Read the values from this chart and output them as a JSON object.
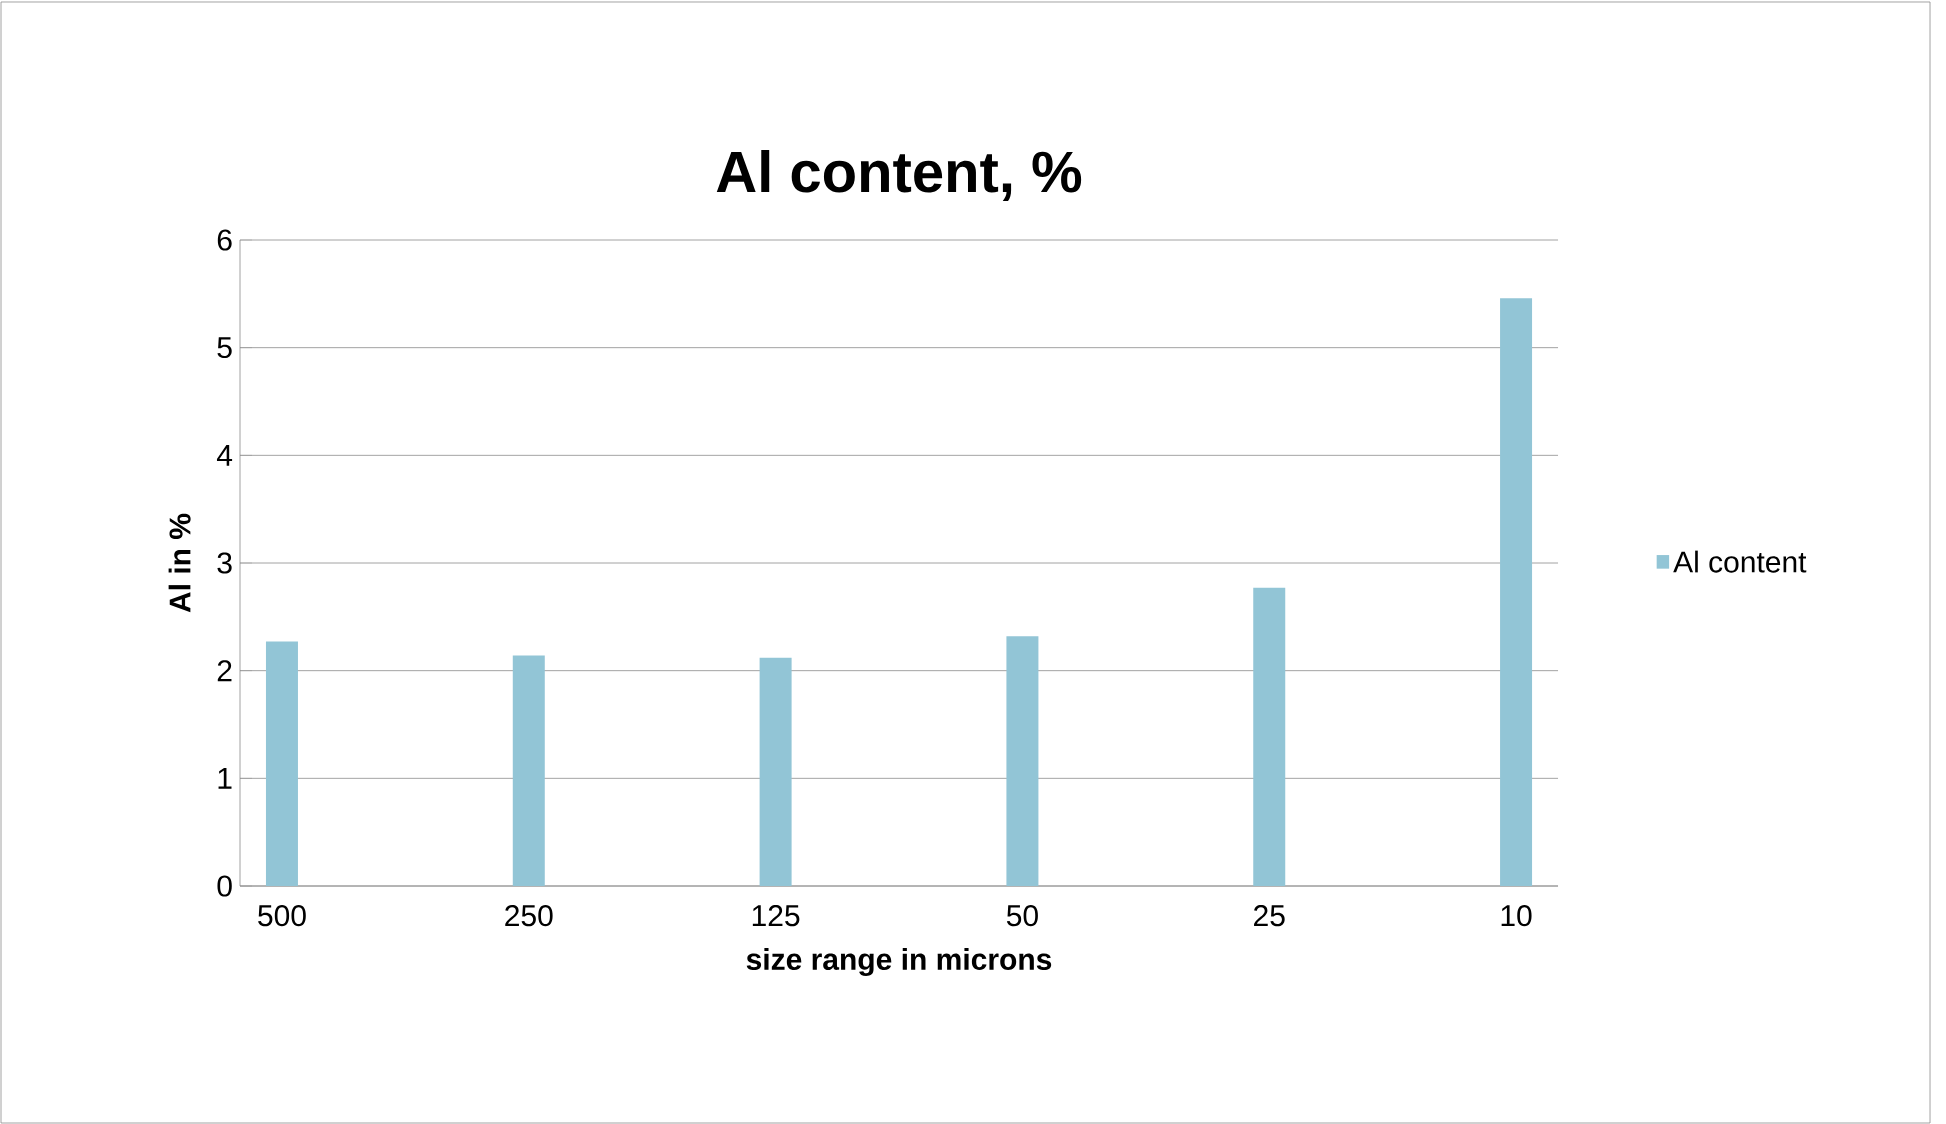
{
  "chart_data": {
    "type": "bar",
    "title": "Al content, %",
    "xlabel": "size range in microns",
    "ylabel": "Al in %",
    "categories": [
      "500",
      "250",
      "125",
      "50",
      "25",
      "10"
    ],
    "series": [
      {
        "name": "Al content",
        "color": "#92c5d6",
        "values": [
          2.27,
          2.14,
          2.12,
          2.32,
          2.77,
          5.46
        ]
      }
    ],
    "ylim": [
      0,
      6
    ],
    "yticks": [
      0,
      1,
      2,
      3,
      4,
      5,
      6
    ],
    "grid": "y",
    "legend": "right"
  }
}
